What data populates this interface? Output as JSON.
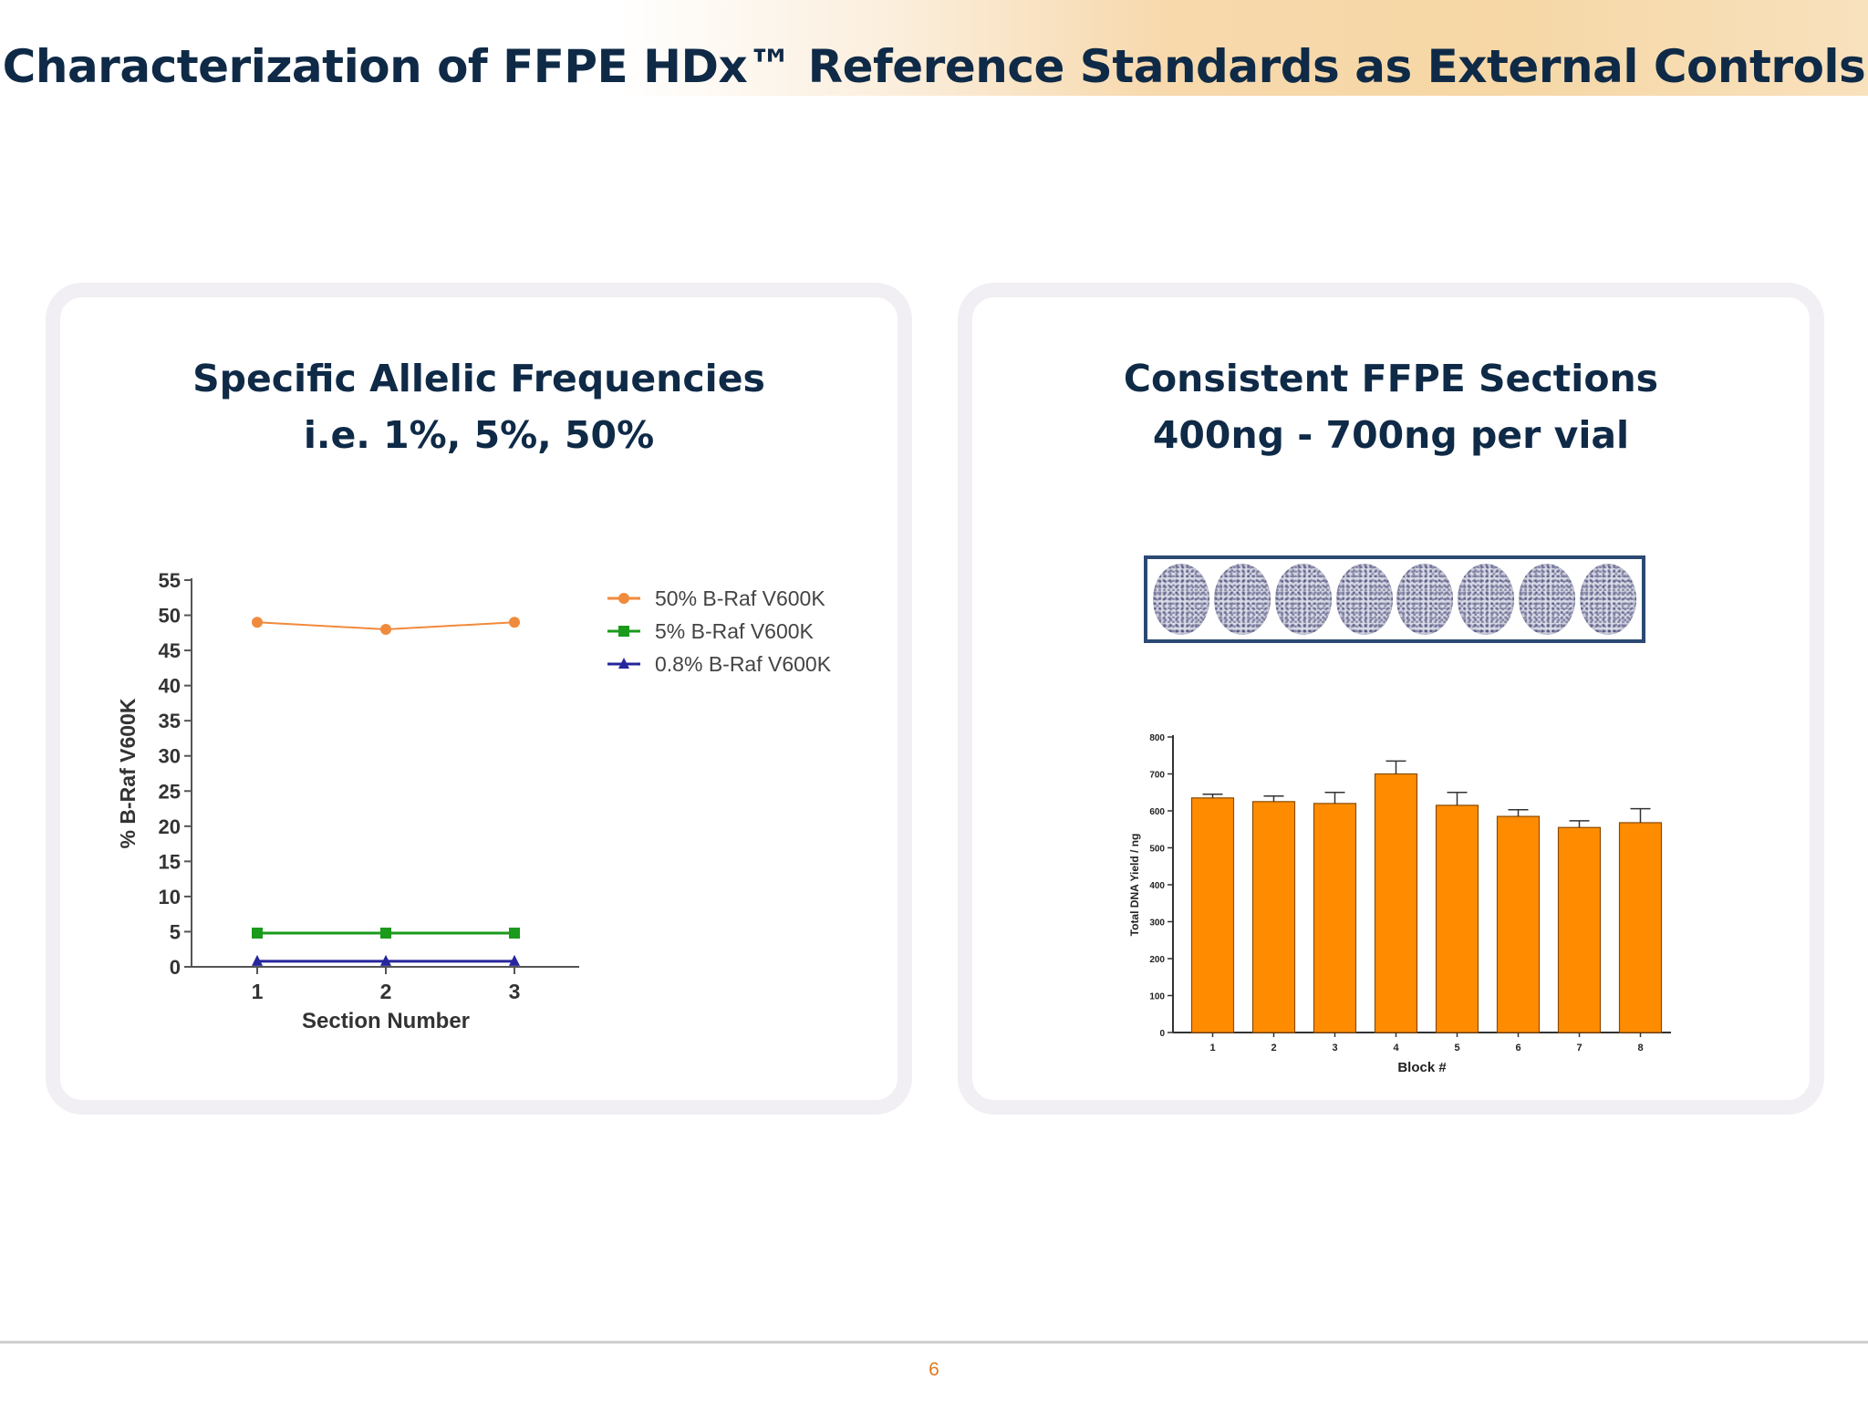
{
  "slide": {
    "title": "Characterization of FFPE HDx™ Reference Standards as External Controls",
    "page_number": "6"
  },
  "colors": {
    "title": "#0f2a47",
    "series_50": "#f08a3c",
    "series_5": "#1b9a1b",
    "series_08": "#26269e",
    "bar_fill": "#ff8c00",
    "page_number": "#e07a1f"
  },
  "left_panel": {
    "heading_line1": "Specific Allelic Frequencies",
    "heading_line2": "i.e. 1%, 5%, 50%"
  },
  "right_panel": {
    "heading_line1": "Consistent FFPE Sections",
    "heading_line2": "400ng - 700ng per vial",
    "section_images_count": 8
  },
  "chart_data": [
    {
      "type": "line",
      "title": "",
      "xlabel": "Section Number",
      "ylabel": "% B-Raf V600K",
      "x": [
        1,
        2,
        3
      ],
      "ylim": [
        0,
        55
      ],
      "yticks": [
        0,
        5,
        10,
        15,
        20,
        25,
        30,
        35,
        40,
        45,
        50,
        55
      ],
      "grid": false,
      "legend_position": "top-right",
      "series": [
        {
          "name": "50% B-Raf V600K",
          "values": [
            49,
            48,
            49
          ],
          "marker": "circle",
          "color": "#f08a3c"
        },
        {
          "name": "5% B-Raf V600K",
          "values": [
            4.8,
            4.8,
            4.8
          ],
          "marker": "square",
          "color": "#1b9a1b"
        },
        {
          "name": "0.8% B-Raf V600K",
          "values": [
            0.8,
            0.8,
            0.8
          ],
          "marker": "triangle",
          "color": "#26269e"
        }
      ]
    },
    {
      "type": "bar",
      "title": "",
      "xlabel": "Block #",
      "ylabel": "Total DNA Yield / ng",
      "categories": [
        "1",
        "2",
        "3",
        "4",
        "5",
        "6",
        "7",
        "8"
      ],
      "values": [
        635,
        625,
        620,
        700,
        615,
        585,
        555,
        568
      ],
      "errors": [
        10,
        15,
        30,
        35,
        35,
        18,
        18,
        38
      ],
      "ylim": [
        0,
        800
      ],
      "yticks": [
        0,
        100,
        200,
        300,
        400,
        500,
        600,
        700,
        800
      ],
      "grid": false,
      "color": "#ff8c00"
    }
  ]
}
